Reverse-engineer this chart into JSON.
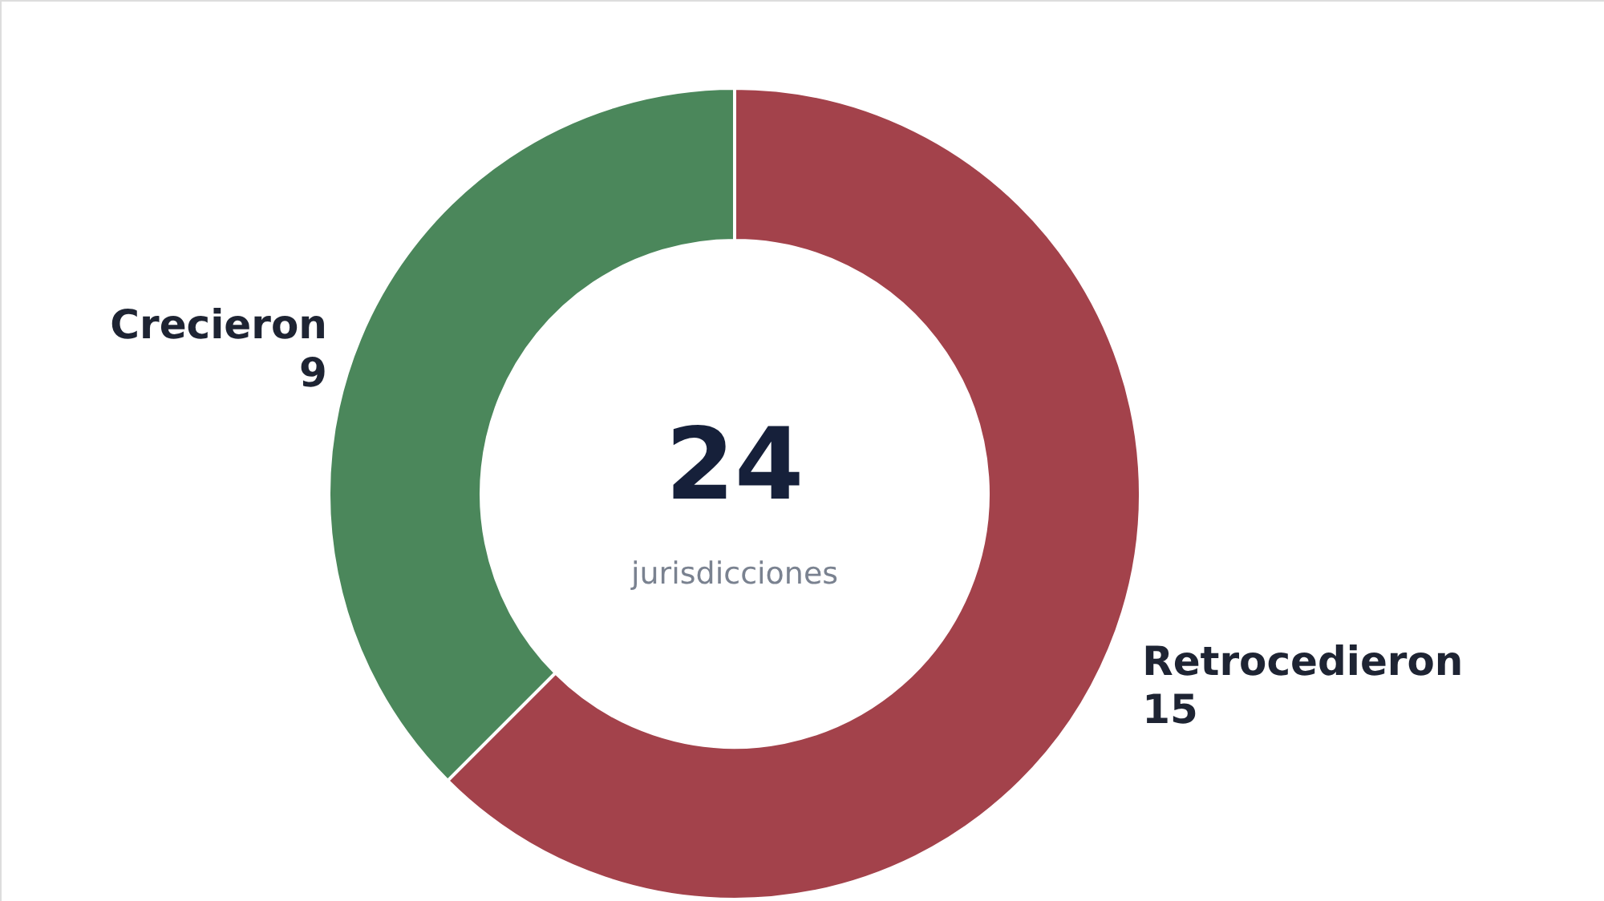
{
  "chart_data": {
    "type": "donut",
    "categories": [
      "Retrocedieron",
      "Crecieron"
    ],
    "values": [
      15,
      9
    ],
    "colors": [
      "#a3424b",
      "#4b875b"
    ],
    "data_labels": true,
    "annotations": [
      "24",
      "jurisdicciones"
    ]
  }
}
